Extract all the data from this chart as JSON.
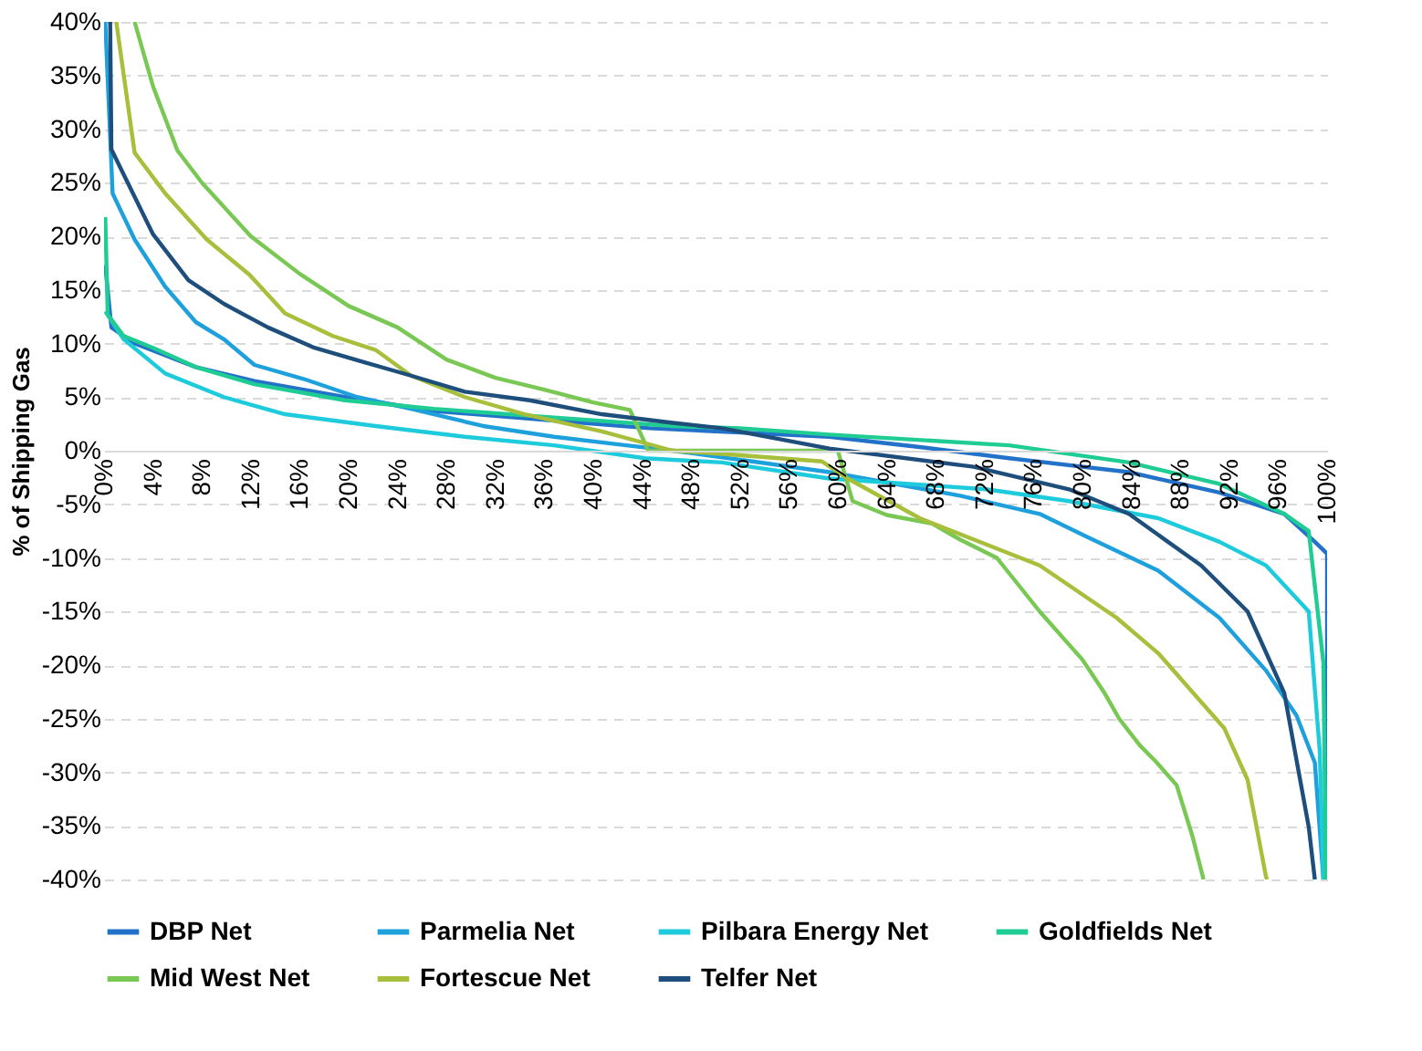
{
  "chart_data": {
    "type": "line",
    "ylabel": "% of Shipping Gas",
    "xlim": [
      0,
      100
    ],
    "ylim": [
      -40,
      40
    ],
    "xticks": [
      {
        "value": 0,
        "label": "0%"
      },
      {
        "value": 4,
        "label": "4%"
      },
      {
        "value": 8,
        "label": "8%"
      },
      {
        "value": 12,
        "label": "12%"
      },
      {
        "value": 16,
        "label": "16%"
      },
      {
        "value": 20,
        "label": "20%"
      },
      {
        "value": 24,
        "label": "24%"
      },
      {
        "value": 28,
        "label": "28%"
      },
      {
        "value": 32,
        "label": "32%"
      },
      {
        "value": 36,
        "label": "36%"
      },
      {
        "value": 40,
        "label": "40%"
      },
      {
        "value": 44,
        "label": "44%"
      },
      {
        "value": 48,
        "label": "48%"
      },
      {
        "value": 52,
        "label": "52%"
      },
      {
        "value": 56,
        "label": "56%"
      },
      {
        "value": 60,
        "label": "60%"
      },
      {
        "value": 64,
        "label": "64%"
      },
      {
        "value": 68,
        "label": "68%"
      },
      {
        "value": 72,
        "label": "72%"
      },
      {
        "value": 76,
        "label": "76%"
      },
      {
        "value": 80,
        "label": "80%"
      },
      {
        "value": 84,
        "label": "84%"
      },
      {
        "value": 88,
        "label": "88%"
      },
      {
        "value": 92,
        "label": "92%"
      },
      {
        "value": 96,
        "label": "96%"
      },
      {
        "value": 100,
        "label": "100%"
      }
    ],
    "yticks": [
      {
        "value": -40,
        "label": "-40%"
      },
      {
        "value": -35,
        "label": "-35%"
      },
      {
        "value": -30,
        "label": "-30%"
      },
      {
        "value": -25,
        "label": "-25%"
      },
      {
        "value": -20,
        "label": "-20%"
      },
      {
        "value": -15,
        "label": "-15%"
      },
      {
        "value": -10,
        "label": "-10%"
      },
      {
        "value": -5,
        "label": "-5%"
      },
      {
        "value": 0,
        "label": "0%"
      },
      {
        "value": 5,
        "label": "5%"
      },
      {
        "value": 10,
        "label": "10%"
      },
      {
        "value": 15,
        "label": "15%"
      },
      {
        "value": 20,
        "label": "20%"
      },
      {
        "value": 25,
        "label": "25%"
      },
      {
        "value": 30,
        "label": "30%"
      },
      {
        "value": 35,
        "label": "35%"
      },
      {
        "value": 40,
        "label": "40%"
      }
    ],
    "grid": "y",
    "legend": "bottom",
    "marker": "none",
    "line_style": "solid",
    "series": [
      {
        "name": "DBP Net",
        "color": "#2372c9",
        "x": [
          0.1,
          0.6,
          2.5,
          7.5,
          12.3,
          19.7,
          27,
          36.8,
          44.6,
          52,
          59.3,
          67,
          74,
          83.8,
          91.2,
          96.5,
          99,
          100,
          100
        ],
        "values": [
          17.3,
          11.5,
          10,
          7.8,
          6.5,
          5,
          3.7,
          2.8,
          2.1,
          1.7,
          1.3,
          0.3,
          -0.7,
          -2,
          -3.9,
          -5.9,
          -8.5,
          -9.6,
          -40
        ]
      },
      {
        "name": "Parmelia Net",
        "color": "#1ea0dc",
        "x": [
          0.1,
          0.7,
          2.5,
          5,
          7.5,
          9.8,
          12.3,
          16.3,
          20.7,
          25.1,
          31,
          36.8,
          42.7,
          46.5,
          53,
          59.3,
          70,
          76.5,
          80.3,
          86.2,
          91.2,
          95,
          97.5,
          99,
          99.7
        ],
        "values": [
          40,
          24,
          19.7,
          15.3,
          12,
          10.4,
          8,
          6.7,
          5,
          3.9,
          2.3,
          1.3,
          0.5,
          0,
          -1,
          -2,
          -4.2,
          -5.9,
          -8,
          -11.2,
          -15.6,
          -20.5,
          -24.7,
          -29.1,
          -40
        ]
      },
      {
        "name": "Pilbara Energy Net",
        "color": "#1ecbdc",
        "x": [
          0.1,
          1.6,
          5,
          9.8,
          14.8,
          22.2,
          29.5,
          36.8,
          44.2,
          50.5,
          59.3,
          72.1,
          78.9,
          86.2,
          91.2,
          95,
          98.5,
          99.4,
          99.7
        ],
        "values": [
          13,
          10.4,
          7.2,
          5,
          3.4,
          2.3,
          1.3,
          0.5,
          -0.7,
          -1.1,
          -2.6,
          -3.6,
          -4.7,
          -6.3,
          -8.5,
          -10.7,
          -15,
          -28,
          -40
        ]
      },
      {
        "name": "Goldfields Net",
        "color": "#1fcc93",
        "x": [
          0.1,
          0.3,
          1.6,
          4,
          7.5,
          12.3,
          19.7,
          27,
          36.8,
          46.5,
          52,
          59.3,
          74,
          83.8,
          91.2,
          96.5,
          98.5,
          99.7,
          99.9
        ],
        "values": [
          21.8,
          12.7,
          10.7,
          9.6,
          7.8,
          6.2,
          4.7,
          3.9,
          3.1,
          2.3,
          2.1,
          1.5,
          0.5,
          -1.1,
          -3.1,
          -5.9,
          -7.5,
          -19.8,
          -40
        ]
      },
      {
        "name": "Mid West Net",
        "color": "#79c854",
        "x": [
          2.5,
          4,
          6,
          8,
          10,
          12,
          16,
          20,
          24,
          28,
          32,
          36,
          40,
          43,
          44.5,
          48,
          52,
          56,
          60,
          61.2,
          64,
          67.7,
          70,
          73,
          76.5,
          80,
          81.8,
          83,
          84.7,
          86,
          87.7,
          89,
          89.9
        ],
        "values": [
          40,
          34,
          28,
          25,
          22.5,
          20,
          16.5,
          13.5,
          11.5,
          8.5,
          6.8,
          5.7,
          4.5,
          3.8,
          0,
          0,
          0,
          0,
          0,
          -4.7,
          -6,
          -6.8,
          -8.3,
          -10,
          -15,
          -19.5,
          -22.6,
          -25,
          -27.5,
          -29,
          -31.2,
          -36,
          -40
        ]
      },
      {
        "name": "Fortescue Net",
        "color": "#a7bf3a",
        "x": [
          1,
          2.5,
          5,
          8.4,
          11.9,
          14.8,
          18.7,
          22.2,
          25.1,
          29.5,
          34.4,
          40.7,
          46.5,
          50.5,
          58.7,
          60.8,
          66.7,
          76.5,
          82.8,
          86.2,
          91.6,
          93.5,
          95,
          95.1
        ],
        "values": [
          40,
          27.8,
          24,
          19.7,
          16.4,
          12.8,
          10.7,
          9.4,
          7,
          5,
          3.4,
          1.8,
          0,
          -0.3,
          -1,
          -2.6,
          -6.3,
          -10.7,
          -15.6,
          -18.9,
          -25.9,
          -30.7,
          -39.7,
          -40
        ]
      },
      {
        "name": "Telfer Net",
        "color": "#1d4e7c",
        "x": [
          0.5,
          0.6,
          4,
          6.9,
          9.8,
          13.4,
          17.2,
          21.1,
          25.1,
          29.5,
          34.8,
          40.7,
          46.5,
          50.5,
          59.3,
          71.1,
          78.9,
          83.8,
          89.7,
          93.5,
          96.5,
          98.5,
          99
        ],
        "values": [
          40,
          28.1,
          20.2,
          15.9,
          13.7,
          11.5,
          9.6,
          8.3,
          7,
          5.5,
          4.7,
          3.4,
          2.6,
          2.1,
          0.2,
          -1.5,
          -3.6,
          -5.9,
          -10.7,
          -15,
          -22.6,
          -35.1,
          -40
        ]
      }
    ]
  }
}
